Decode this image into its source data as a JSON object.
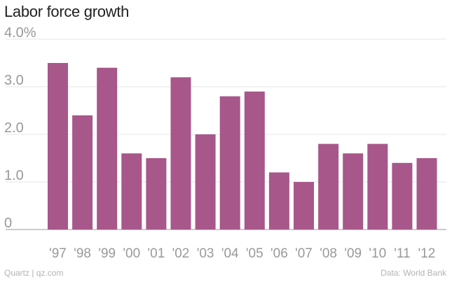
{
  "title": "Labor force growth",
  "footer": {
    "source_left": "Quartz | qz.com",
    "source_right": "Data: World Bank"
  },
  "colors": {
    "bar": "#a8578a",
    "grid": "#e6e6e6",
    "tick_text": "#999999",
    "axis": "#999999"
  },
  "chart_data": {
    "type": "bar",
    "title": "Labor force growth",
    "xlabel": "",
    "ylabel": "",
    "ylim": [
      0,
      4.0
    ],
    "ytick_values": [
      0,
      1.0,
      2.0,
      3.0,
      4.0
    ],
    "ytick_labels": [
      "0",
      "1.0",
      "2.0",
      "3.0",
      "4.0%"
    ],
    "grid": true,
    "categories": [
      "'97",
      "'98",
      "'99",
      "'00",
      "'01",
      "'02",
      "'03",
      "'04",
      "'05",
      "'06",
      "'07",
      "'08",
      "'09",
      "'10",
      "'11",
      "'12"
    ],
    "values": [
      3.5,
      2.4,
      3.4,
      1.6,
      1.5,
      3.2,
      2.0,
      2.8,
      2.9,
      1.2,
      1.0,
      1.8,
      1.6,
      1.8,
      1.4,
      1.5
    ]
  }
}
